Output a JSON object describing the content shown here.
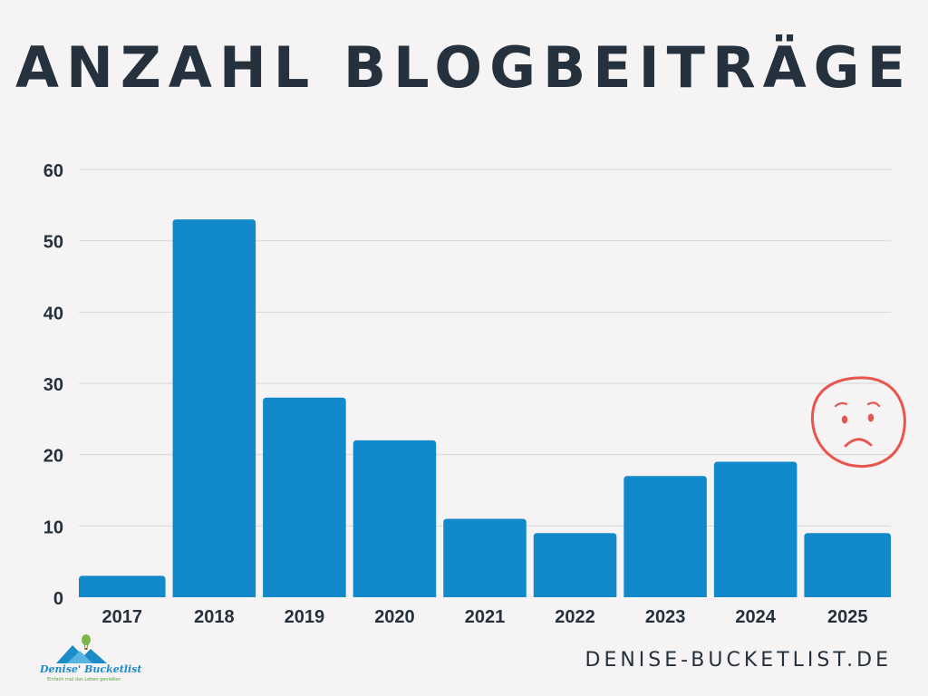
{
  "title": "ANZAHL BLOGBEITRÄGE",
  "website": "DENISE-BUCKETLIST.DE",
  "logo": {
    "name": "Denise' Bucketlist",
    "tagline": "Einfach mal das Leben genießen",
    "icon": "hot-air-balloon-mountains-logo"
  },
  "annotation": {
    "icon": "sad-face-icon",
    "color": "#e8554e"
  },
  "colors": {
    "bar": "#1289cb",
    "text": "#25313d",
    "grid": "#d8d6d6",
    "background": "#f5f3f3"
  },
  "chart_data": {
    "type": "bar",
    "title": "ANZAHL BLOGBEITRÄGE",
    "categories": [
      "2017",
      "2018",
      "2019",
      "2020",
      "2021",
      "2022",
      "2023",
      "2024",
      "2025"
    ],
    "values": [
      3,
      53,
      28,
      22,
      11,
      9,
      17,
      19,
      9
    ],
    "xlabel": "",
    "ylabel": "",
    "ylim": [
      0,
      60
    ],
    "yticks": [
      0,
      10,
      20,
      30,
      40,
      50,
      60
    ],
    "grid": true,
    "legend": "none"
  }
}
